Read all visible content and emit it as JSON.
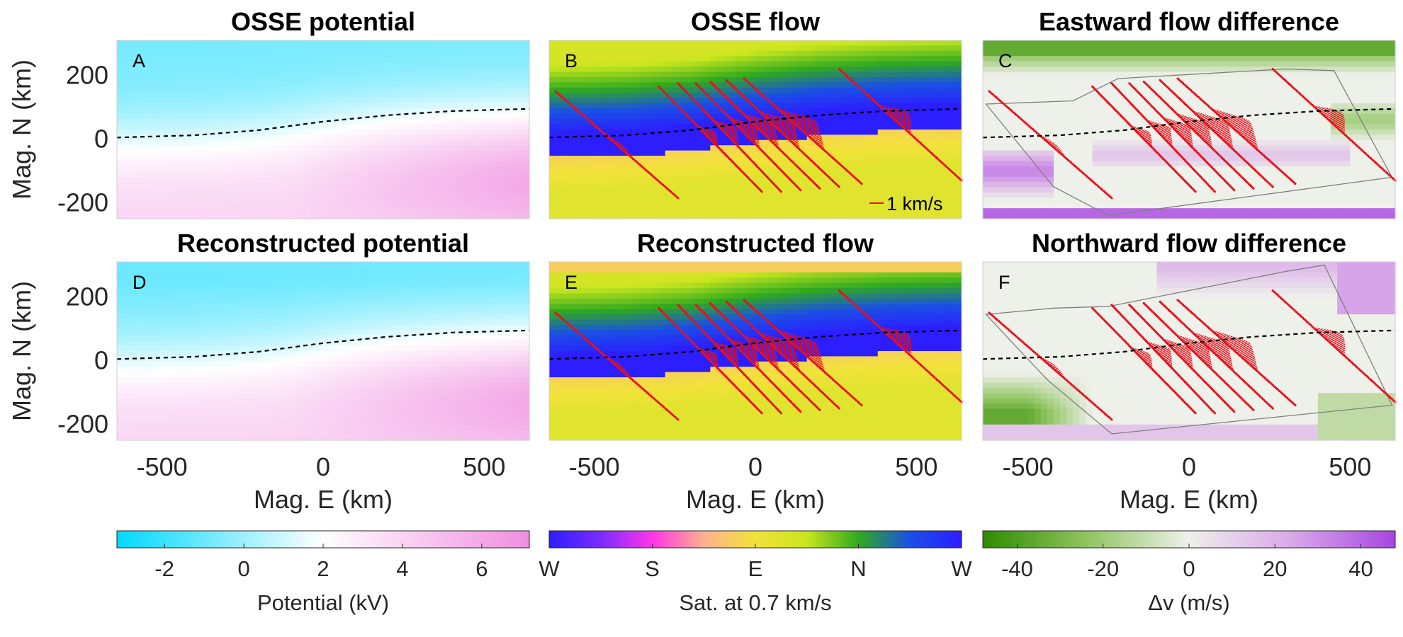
{
  "chart_data": [
    {
      "type": "heatmap",
      "panel": "A",
      "title": "OSSE potential",
      "ylabel": "Mag. N (km)",
      "xlabel": "",
      "xlim": [
        -640,
        640
      ],
      "ylim": [
        -250,
        310
      ],
      "yticks": [
        200,
        0,
        -200
      ],
      "xticks": [],
      "dashed_boundary": [
        [
          -640,
          5
        ],
        [
          -400,
          12
        ],
        [
          -200,
          28
        ],
        [
          0,
          55
        ],
        [
          200,
          75
        ],
        [
          400,
          88
        ],
        [
          640,
          95
        ]
      ],
      "colormap": "potential",
      "field": "potential",
      "tracks": []
    },
    {
      "type": "heatmap",
      "panel": "B",
      "title": "OSSE flow",
      "ylabel": "",
      "xlabel": "",
      "xlim": [
        -640,
        640
      ],
      "ylim": [
        -250,
        310
      ],
      "yticks": [],
      "xticks": [],
      "dashed_boundary": [
        [
          -640,
          5
        ],
        [
          -400,
          12
        ],
        [
          -200,
          28
        ],
        [
          0,
          55
        ],
        [
          200,
          75
        ],
        [
          400,
          88
        ],
        [
          640,
          95
        ]
      ],
      "colormap": "flow",
      "field": "flow",
      "scale_label": "1 km/s",
      "tracks": "flow_tracks"
    },
    {
      "type": "heatmap",
      "panel": "C",
      "title": "Eastward flow difference",
      "ylabel": "",
      "xlabel": "",
      "xlim": [
        -640,
        640
      ],
      "ylim": [
        -250,
        310
      ],
      "yticks": [],
      "xticks": [],
      "dashed_boundary": [
        [
          -640,
          5
        ],
        [
          -400,
          12
        ],
        [
          -200,
          28
        ],
        [
          0,
          55
        ],
        [
          200,
          75
        ],
        [
          400,
          88
        ],
        [
          640,
          95
        ]
      ],
      "colormap": "difference",
      "field": "dE",
      "tracks": "flow_tracks"
    },
    {
      "type": "heatmap",
      "panel": "D",
      "title": "Reconstructed potential",
      "ylabel": "Mag. N (km)",
      "xlabel": "Mag. E (km)",
      "xlim": [
        -640,
        640
      ],
      "ylim": [
        -250,
        310
      ],
      "yticks": [
        200,
        0,
        -200
      ],
      "xticks": [
        -500,
        0,
        500
      ],
      "dashed_boundary": [
        [
          -640,
          5
        ],
        [
          -400,
          12
        ],
        [
          -200,
          28
        ],
        [
          0,
          55
        ],
        [
          200,
          75
        ],
        [
          400,
          88
        ],
        [
          640,
          95
        ]
      ],
      "colormap": "potential",
      "field": "potential2",
      "tracks": []
    },
    {
      "type": "heatmap",
      "panel": "E",
      "title": "Reconstructed flow",
      "ylabel": "",
      "xlabel": "Mag. E (km)",
      "xlim": [
        -640,
        640
      ],
      "ylim": [
        -250,
        310
      ],
      "yticks": [],
      "xticks": [
        -500,
        0,
        500
      ],
      "dashed_boundary": [
        [
          -640,
          5
        ],
        [
          -400,
          12
        ],
        [
          -200,
          28
        ],
        [
          0,
          55
        ],
        [
          200,
          75
        ],
        [
          400,
          88
        ],
        [
          640,
          95
        ]
      ],
      "colormap": "flow",
      "field": "flow2",
      "tracks": "flow_tracks"
    },
    {
      "type": "heatmap",
      "panel": "F",
      "title": "Northward flow difference",
      "ylabel": "",
      "xlabel": "Mag. E (km)",
      "xlim": [
        -640,
        640
      ],
      "ylim": [
        -250,
        310
      ],
      "yticks": [],
      "xticks": [
        -500,
        0,
        500
      ],
      "dashed_boundary": [
        [
          -640,
          5
        ],
        [
          -400,
          12
        ],
        [
          -200,
          28
        ],
        [
          0,
          55
        ],
        [
          200,
          75
        ],
        [
          400,
          88
        ],
        [
          640,
          95
        ]
      ],
      "colormap": "difference",
      "field": "dN",
      "tracks": "flow_tracks"
    }
  ],
  "flow_tracks": [
    {
      "start": [
        -620,
        150
      ],
      "end": [
        -240,
        -185
      ],
      "band_center": [
        -400,
        5
      ],
      "band_length": 70,
      "bulge": 10
    },
    {
      "start": [
        -300,
        165
      ],
      "end": [
        20,
        -165
      ],
      "band_center": [
        -140,
        15
      ],
      "band_length": 50,
      "bulge": 14
    },
    {
      "start": [
        -240,
        175
      ],
      "end": [
        80,
        -165
      ],
      "band_center": [
        -90,
        20
      ],
      "band_length": 60,
      "bulge": 16
    },
    {
      "start": [
        -185,
        175
      ],
      "end": [
        140,
        -160
      ],
      "band_center": [
        -30,
        25
      ],
      "band_length": 70,
      "bulge": 18
    },
    {
      "start": [
        -140,
        180
      ],
      "end": [
        200,
        -155
      ],
      "band_center": [
        20,
        30
      ],
      "band_length": 80,
      "bulge": 20
    },
    {
      "start": [
        -90,
        185
      ],
      "end": [
        260,
        -150
      ],
      "band_center": [
        80,
        35
      ],
      "band_length": 90,
      "bulge": 22
    },
    {
      "start": [
        -35,
        190
      ],
      "end": [
        330,
        -140
      ],
      "band_center": [
        150,
        40
      ],
      "band_length": 100,
      "bulge": 24
    },
    {
      "start": [
        260,
        220
      ],
      "end": [
        640,
        -130
      ],
      "band_center": [
        420,
        45
      ],
      "band_length": 70,
      "bulge": 26
    }
  ],
  "colorbars": [
    {
      "label": "Potential (kV)",
      "ticks": [
        "-2",
        "0",
        "2",
        "4",
        "6"
      ],
      "range": [
        -3.2,
        7.2
      ],
      "tick_values": [
        -2,
        0,
        2,
        4,
        6
      ],
      "colormap": "potential"
    },
    {
      "label": "Sat. at 0.7 km/s",
      "ticks": [
        "W",
        "S",
        "E",
        "N",
        "W"
      ],
      "range": [
        0,
        4
      ],
      "tick_values": [
        0,
        1,
        2,
        3,
        4
      ],
      "colormap": "flow"
    },
    {
      "label": "Δv (m/s)",
      "ticks": [
        "-40",
        "-20",
        "0",
        "20",
        "40"
      ],
      "range": [
        -48,
        48
      ],
      "tick_values": [
        -40,
        -20,
        0,
        20,
        40
      ],
      "colormap": "difference"
    }
  ],
  "colors": {
    "potential": [
      "#00d8ff",
      "#ffffff",
      "#f08ee0"
    ],
    "flow": [
      "#2d1eff",
      "#7a2cff",
      "#ff35e6",
      "#ffb090",
      "#f2e23a",
      "#c8e61e",
      "#2faa1e",
      "#1a4fe6",
      "#2d1eff"
    ],
    "difference": [
      "#2e8b00",
      "#8fc45e",
      "#eef0ea",
      "#d9a8e9",
      "#a646e0"
    ],
    "track": "#e8111b",
    "dashed": "#000000",
    "outline": "#7f7f7f"
  }
}
